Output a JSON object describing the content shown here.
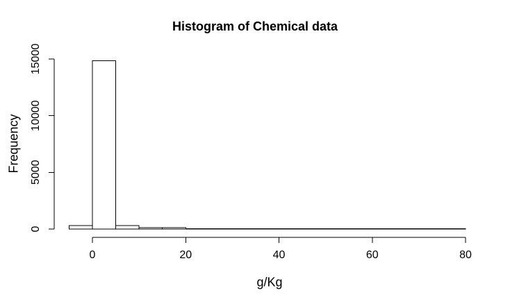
{
  "chart_data": {
    "type": "bar",
    "subtype": "histogram",
    "title": "Histogram of Chemical data",
    "xlabel": "g/Kg",
    "ylabel": "Frequency",
    "breaks": [
      -5,
      0,
      5,
      10,
      15,
      20,
      25,
      30,
      35,
      40,
      45,
      50,
      55,
      60,
      65,
      70,
      75,
      80
    ],
    "counts": [
      310,
      14860,
      300,
      130,
      110,
      25,
      25,
      25,
      25,
      25,
      25,
      25,
      25,
      25,
      25,
      25,
      25
    ],
    "x_ticks": [
      0,
      20,
      40,
      60,
      80
    ],
    "y_ticks": [
      0,
      5000,
      10000,
      15000
    ],
    "xlim": [
      -5,
      80
    ],
    "ylim": [
      0,
      15000
    ],
    "grid": false,
    "legend": "none",
    "colors": {
      "background": "#ffffff",
      "bar_fill": "#ffffff",
      "bar_stroke": "#000000",
      "axis": "#000000",
      "text": "#000000"
    }
  }
}
